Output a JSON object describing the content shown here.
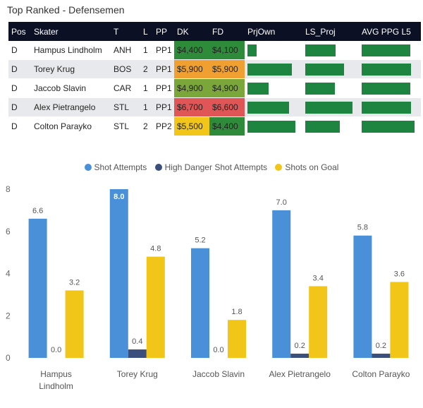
{
  "page": {
    "title": "Top Ranked - Defensemen"
  },
  "table": {
    "columns": [
      "Pos",
      "Skater",
      "T",
      "L",
      "PP",
      "DK",
      "FD",
      "PrjOwn",
      "LS_Proj",
      "AVG PPG L5"
    ],
    "rows": [
      {
        "pos": "D",
        "skater": "Hampus Lindholm",
        "team": "ANH",
        "line": "1",
        "pp": "PP1",
        "dk": "$4,400",
        "fd": "$4,100",
        "dk_color": "#2e8b3a",
        "fd_color": "#2e8b3a",
        "prjown": 0.18,
        "ls_proj": 0.62,
        "avg_ppg": 0.88
      },
      {
        "pos": "D",
        "skater": "Torey Krug",
        "team": "BOS",
        "line": "2",
        "pp": "PP1",
        "dk": "$5,900",
        "fd": "$5,900",
        "dk_color": "#f0a030",
        "fd_color": "#f0a030",
        "prjown": 0.88,
        "ls_proj": 0.78,
        "avg_ppg": 0.9
      },
      {
        "pos": "D",
        "skater": "Jaccob Slavin",
        "team": "CAR",
        "line": "1",
        "pp": "PP1",
        "dk": "$4,900",
        "fd": "$4,900",
        "dk_color": "#7aa63a",
        "fd_color": "#7aa63a",
        "prjown": 0.42,
        "ls_proj": 0.6,
        "avg_ppg": 0.88
      },
      {
        "pos": "D",
        "skater": "Alex Pietrangelo",
        "team": "STL",
        "line": "1",
        "pp": "PP1",
        "dk": "$6,700",
        "fd": "$6,600",
        "dk_color": "#e05555",
        "fd_color": "#e05555",
        "prjown": 0.82,
        "ls_proj": 0.95,
        "avg_ppg": 0.9
      },
      {
        "pos": "D",
        "skater": "Colton Parayko",
        "team": "STL",
        "line": "2",
        "pp": "PP2",
        "dk": "$5,500",
        "fd": "$4,400",
        "dk_color": "#f2c618",
        "fd_color": "#2e8b3a",
        "prjown": 0.95,
        "ls_proj": 0.7,
        "avg_ppg": 0.96
      }
    ]
  },
  "chart_data": {
    "type": "bar",
    "categories": [
      "Hampus Lindholm",
      "Torey Krug",
      "Jaccob Slavin",
      "Alex Pietrangelo",
      "Colton Parayko"
    ],
    "category_lines": [
      [
        "Hampus",
        "Lindholm"
      ],
      [
        "Torey Krug"
      ],
      [
        "Jaccob Slavin"
      ],
      [
        "Alex Pietrangelo"
      ],
      [
        "Colton Parayko"
      ]
    ],
    "series": [
      {
        "name": "Shot Attempts",
        "color": "#4a90d9",
        "values": [
          6.6,
          8.0,
          5.2,
          7.0,
          5.8
        ],
        "labels": [
          "6.6",
          "8.0",
          "5.2",
          "7.0",
          "5.8"
        ]
      },
      {
        "name": "High Danger Shot Attempts",
        "color": "#3b4f7c",
        "values": [
          0.0,
          0.4,
          0.0,
          0.2,
          0.2
        ],
        "labels": [
          "0.0",
          "0.4",
          "0.0",
          "0.2",
          "0.2"
        ]
      },
      {
        "name": "Shots on Goal",
        "color": "#f2c618",
        "values": [
          3.2,
          4.8,
          1.8,
          3.4,
          3.6
        ],
        "labels": [
          "3.2",
          "4.8",
          "1.8",
          "3.4",
          "3.6"
        ]
      }
    ],
    "yticks": [
      0,
      2,
      4,
      6,
      8
    ],
    "ylim": [
      0,
      8
    ],
    "legend_position": "top-center",
    "title": "",
    "xlabel": "",
    "ylabel": ""
  }
}
